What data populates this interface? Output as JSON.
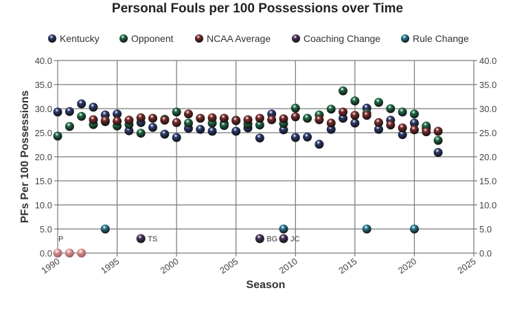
{
  "chart_data": {
    "type": "scatter",
    "title": "Personal Fouls per 100 Possessions over Time",
    "xlabel": "Season",
    "ylabel": "PFs Per 100 Possessions",
    "xlim": [
      1990,
      2025
    ],
    "ylim": [
      0,
      40
    ],
    "x_ticks": [
      "1990",
      "1995",
      "2000",
      "2005",
      "2010",
      "2015",
      "2020",
      "2025"
    ],
    "y_ticks": [
      "0.0",
      "5.0",
      "10.0",
      "15.0",
      "20.0",
      "25.0",
      "30.0",
      "35.0",
      "40.0"
    ],
    "grid": true,
    "legend_position": "top",
    "series": [
      {
        "name": "Kentucky",
        "color": "#2c3b6e",
        "x": [
          1990,
          1991,
          1992,
          1993,
          1994,
          1995,
          1996,
          1997,
          1998,
          1999,
          2000,
          2001,
          2002,
          2003,
          2004,
          2005,
          2006,
          2007,
          2008,
          2009,
          2010,
          2011,
          2012,
          2013,
          2014,
          2015,
          2016,
          2017,
          2018,
          2019,
          2020,
          2021,
          2022
        ],
        "y": [
          29.3,
          29.4,
          31.0,
          30.3,
          28.7,
          28.9,
          25.4,
          27.1,
          26.1,
          24.7,
          24.0,
          25.9,
          25.7,
          25.3,
          26.9,
          25.3,
          26.0,
          23.9,
          28.9,
          25.6,
          24.0,
          24.1,
          22.6,
          25.7,
          28.0,
          27.0,
          30.1,
          25.7,
          27.6,
          24.6,
          27.0,
          25.9,
          20.9
        ]
      },
      {
        "name": "Opponent",
        "color": "#1f6b47",
        "x": [
          1990,
          1991,
          1992,
          1993,
          1994,
          1995,
          1996,
          1997,
          1999,
          2000,
          2001,
          2003,
          2004,
          2005,
          2006,
          2007,
          2009,
          2010,
          2011,
          2012,
          2013,
          2014,
          2015,
          2016,
          2017,
          2018,
          2019,
          2020,
          2021,
          2022
        ],
        "y": [
          24.3,
          26.3,
          28.4,
          26.7,
          27.3,
          26.4,
          26.7,
          24.9,
          27.8,
          29.3,
          27.0,
          27.0,
          26.5,
          27.6,
          26.8,
          26.6,
          26.9,
          30.1,
          28.0,
          28.7,
          29.9,
          33.7,
          31.6,
          29.0,
          31.3,
          30.0,
          29.3,
          28.9,
          26.4,
          23.4
        ]
      },
      {
        "name": "NCAA Average",
        "color": "#7c2b2b",
        "x": [
          1990,
          1991,
          1992,
          1993,
          1994,
          1995,
          1996,
          1997,
          1998,
          1999,
          2000,
          2001,
          2002,
          2003,
          2004,
          2005,
          2006,
          2007,
          2008,
          2009,
          2010,
          2012,
          2013,
          2014,
          2015,
          2016,
          2017,
          2018,
          2019,
          2020,
          2021,
          2022
        ],
        "y": [
          0,
          0,
          0,
          27.7,
          27.5,
          27.4,
          27.6,
          28.1,
          28.0,
          27.6,
          27.1,
          28.9,
          28.0,
          28.1,
          28.0,
          27.5,
          27.7,
          28.0,
          27.7,
          27.9,
          28.3,
          27.7,
          27.0,
          29.3,
          28.6,
          28.6,
          27.1,
          26.6,
          26.0,
          25.6,
          25.2,
          25.3
        ]
      },
      {
        "name": "Coaching Change",
        "color": "#4a3462",
        "x": [
          1989,
          1997,
          2007,
          2009
        ],
        "y": [
          3.0,
          3.0,
          3.0,
          3.0
        ],
        "labels": [
          "P",
          "TS",
          "BG",
          "JC"
        ]
      },
      {
        "name": "Rule Change",
        "color": "#2a7d93",
        "x": [
          1994,
          2009,
          2016,
          2020
        ],
        "y": [
          5.0,
          5.0,
          5.0,
          5.0
        ]
      }
    ]
  }
}
